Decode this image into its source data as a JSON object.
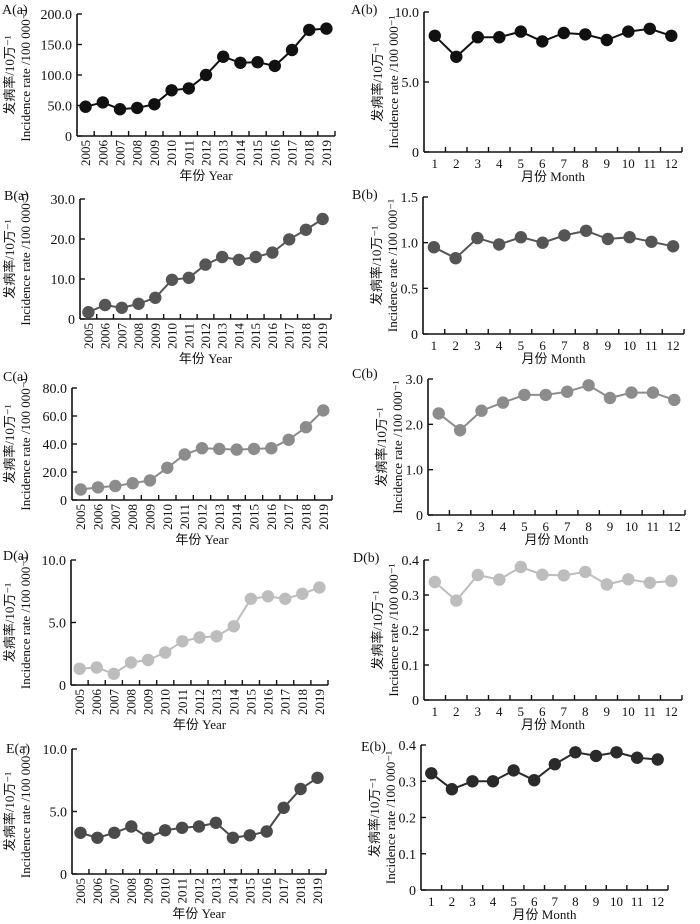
{
  "chart_data": [
    {
      "id": "A(a)",
      "panel_label": "A(a)",
      "type": "line",
      "xlabel": "年份  Year",
      "ylabel_cn": "发病率/10万⁻¹",
      "ylabel_en": "Incidence rate /100 000⁻¹",
      "categories": [
        "2005",
        "2006",
        "2007",
        "2008",
        "2009",
        "2010",
        "2011",
        "2012",
        "2013",
        "2014",
        "2015",
        "2016",
        "2017",
        "2018",
        "2019"
      ],
      "x_tick_rotation": "vertical",
      "yticks": [
        "0",
        "50.0",
        "100.0",
        "150.0",
        "200.0"
      ],
      "ylim": [
        0,
        200
      ],
      "values": [
        48,
        55,
        44,
        46,
        52,
        75,
        78,
        100,
        130,
        120,
        121,
        115,
        141,
        174,
        176
      ],
      "color": "#111111",
      "grid": false
    },
    {
      "id": "A(b)",
      "panel_label": "A(b)",
      "type": "line",
      "xlabel": "月份  Month",
      "ylabel_cn": "发病率/10万⁻¹",
      "ylabel_en": "Incidence rate /100 000⁻¹",
      "categories": [
        "1",
        "2",
        "3",
        "4",
        "5",
        "6",
        "7",
        "8",
        "9",
        "10",
        "11",
        "12"
      ],
      "x_tick_rotation": "horizontal",
      "yticks": [
        "0",
        "5.0",
        "10.0"
      ],
      "ylim": [
        0,
        10
      ],
      "values": [
        8.3,
        6.8,
        8.2,
        8.2,
        8.6,
        7.9,
        8.5,
        8.4,
        8.0,
        8.6,
        8.8,
        8.3
      ],
      "color": "#111111",
      "grid": false
    },
    {
      "id": "B(a)",
      "panel_label": "B(a)",
      "type": "line",
      "xlabel": "年份  Year",
      "ylabel_cn": "发病率/10万⁻¹",
      "ylabel_en": "Incidence rate /100 000⁻¹",
      "categories": [
        "2005",
        "2006",
        "2007",
        "2008",
        "2009",
        "2010",
        "2011",
        "2012",
        "2013",
        "2014",
        "2015",
        "2016",
        "2017",
        "2018",
        "2019"
      ],
      "x_tick_rotation": "vertical",
      "yticks": [
        "0",
        "10.0",
        "20.0",
        "30.0"
      ],
      "ylim": [
        0,
        30
      ],
      "values": [
        1.7,
        3.5,
        2.8,
        3.8,
        5.3,
        9.8,
        10.3,
        13.6,
        15.5,
        14.8,
        15.5,
        16.6,
        19.9,
        22.3,
        25.0
      ],
      "color": "#555555",
      "grid": false
    },
    {
      "id": "B(b)",
      "panel_label": "B(b)",
      "type": "line",
      "xlabel": "月份  Month",
      "ylabel_cn": "发病率/10万⁻¹",
      "ylabel_en": "Incidence rate /100 000⁻¹",
      "categories": [
        "1",
        "2",
        "3",
        "4",
        "5",
        "6",
        "7",
        "8",
        "9",
        "10",
        "11",
        "12"
      ],
      "x_tick_rotation": "horizontal",
      "yticks": [
        "0",
        "0.5",
        "1.0",
        "1.5"
      ],
      "ylim": [
        0,
        1.5
      ],
      "values": [
        0.95,
        0.83,
        1.05,
        0.98,
        1.06,
        1.0,
        1.08,
        1.13,
        1.04,
        1.06,
        1.01,
        0.96
      ],
      "color": "#555555",
      "grid": false
    },
    {
      "id": "C(a)",
      "panel_label": "C(a)",
      "type": "line",
      "xlabel": "年份  Year",
      "ylabel_cn": "发病率/10万⁻¹",
      "ylabel_en": "Incidence rate /100 000⁻¹",
      "categories": [
        "2005",
        "2006",
        "2007",
        "2008",
        "2009",
        "2010",
        "2011",
        "2012",
        "2013",
        "2014",
        "2015",
        "2016",
        "2017",
        "2018",
        "2019"
      ],
      "x_tick_rotation": "vertical",
      "yticks": [
        "0",
        "20.0",
        "40.0",
        "60.0",
        "80.0"
      ],
      "ylim": [
        0,
        80
      ],
      "values": [
        7.5,
        9.0,
        10.0,
        12.0,
        14.0,
        23.0,
        32.5,
        37.0,
        36.5,
        36.0,
        36.5,
        37.0,
        43.0,
        52.0,
        64.0
      ],
      "color": "#8c8c8c",
      "grid": false
    },
    {
      "id": "C(b)",
      "panel_label": "C(b)",
      "type": "line",
      "xlabel": "月份  Month",
      "ylabel_cn": "发病率/10万⁻¹",
      "ylabel_en": "Incidence rate /100 000⁻¹",
      "categories": [
        "1",
        "2",
        "3",
        "4",
        "5",
        "6",
        "7",
        "8",
        "9",
        "10",
        "11",
        "12"
      ],
      "x_tick_rotation": "horizontal",
      "yticks": [
        "0",
        "1.0",
        "2.0",
        "3.0"
      ],
      "ylim": [
        0,
        3
      ],
      "values": [
        2.24,
        1.87,
        2.3,
        2.48,
        2.65,
        2.65,
        2.72,
        2.86,
        2.58,
        2.7,
        2.7,
        2.54
      ],
      "color": "#8c8c8c",
      "grid": false
    },
    {
      "id": "D(a)",
      "panel_label": "D(a)",
      "type": "line",
      "xlabel": "年份  Year",
      "ylabel_cn": "发病率/10万⁻¹",
      "ylabel_en": "Incidence rate /100 000⁻¹",
      "categories": [
        "2005",
        "2006",
        "2007",
        "2008",
        "2009",
        "2010",
        "2011",
        "2012",
        "2013",
        "2014",
        "2015",
        "2016",
        "2017",
        "2018",
        "2019"
      ],
      "x_tick_rotation": "vertical",
      "yticks": [
        "0",
        "5.0",
        "10.0"
      ],
      "ylim": [
        0,
        10
      ],
      "values": [
        1.3,
        1.4,
        0.9,
        1.8,
        2.0,
        2.6,
        3.5,
        3.8,
        3.9,
        4.7,
        6.9,
        7.1,
        6.9,
        7.3,
        7.8
      ],
      "color": "#bdbdbd",
      "grid": false
    },
    {
      "id": "D(b)",
      "panel_label": "D(b)",
      "type": "line",
      "xlabel": "月份  Month",
      "ylabel_cn": "发病率/10万⁻¹",
      "ylabel_en": "Incidence rate /100 000⁻¹",
      "categories": [
        "1",
        "2",
        "3",
        "4",
        "5",
        "6",
        "7",
        "8",
        "9",
        "10",
        "11",
        "12"
      ],
      "x_tick_rotation": "horizontal",
      "yticks": [
        "0",
        "0.1",
        "0.2",
        "0.3",
        "0.4"
      ],
      "ylim": [
        0,
        0.4
      ],
      "values": [
        0.337,
        0.284,
        0.357,
        0.344,
        0.38,
        0.358,
        0.356,
        0.366,
        0.33,
        0.345,
        0.335,
        0.34
      ],
      "color": "#bdbdbd",
      "grid": false
    },
    {
      "id": "E(a)",
      "panel_label": "E(a)",
      "type": "line",
      "xlabel": "年份  Year",
      "ylabel_cn": "发病率/10万⁻¹",
      "ylabel_en": "Incidence rate /100 000⁻¹",
      "categories": [
        "2005",
        "2006",
        "2007",
        "2008",
        "2009",
        "2010",
        "2011",
        "2012",
        "2013",
        "2014",
        "2015",
        "2016",
        "2017",
        "2018",
        "2019"
      ],
      "x_tick_rotation": "vertical",
      "yticks": [
        "0",
        "5.0",
        "10.0"
      ],
      "ylim": [
        0,
        10
      ],
      "values": [
        3.3,
        2.9,
        3.3,
        3.8,
        2.9,
        3.5,
        3.7,
        3.8,
        4.1,
        2.9,
        3.1,
        3.4,
        5.3,
        6.8,
        7.7
      ],
      "color": "#4a4a4a",
      "grid": false
    },
    {
      "id": "E(b)",
      "panel_label": "E(b)",
      "type": "line",
      "xlabel": "月份  Month",
      "ylabel_cn": "发病率/10万⁻¹",
      "ylabel_en": "Incidence rate /100 000⁻¹",
      "categories": [
        "1",
        "2",
        "3",
        "4",
        "5",
        "6",
        "7",
        "8",
        "9",
        "10",
        "11",
        "12"
      ],
      "x_tick_rotation": "horizontal",
      "yticks": [
        "0",
        "0.1",
        "0.2",
        "0.3",
        "0.4"
      ],
      "ylim": [
        0,
        0.4
      ],
      "values": [
        0.322,
        0.278,
        0.3,
        0.3,
        0.33,
        0.303,
        0.347,
        0.38,
        0.37,
        0.38,
        0.365,
        0.36
      ],
      "color": "#2a2a2a",
      "grid": false
    }
  ]
}
